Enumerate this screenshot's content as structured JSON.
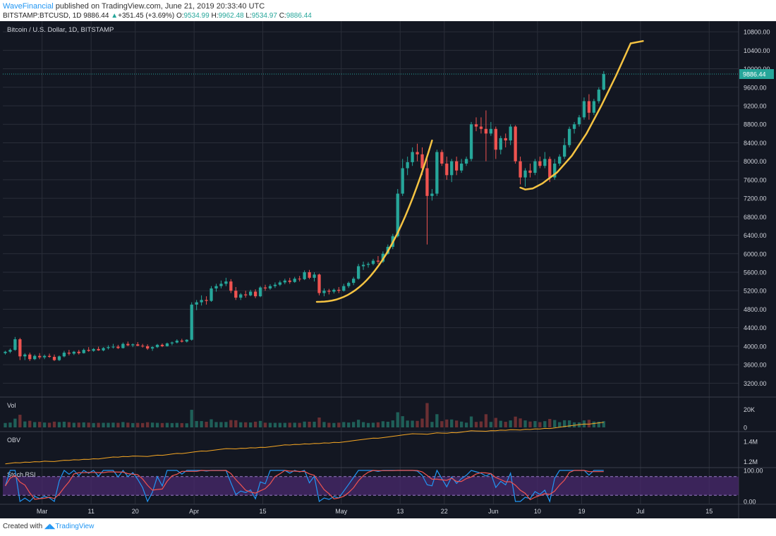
{
  "header": {
    "author": "WaveFinancial",
    "published_text": " published on TradingView.com, June 21, 2019 20:33:40 UTC",
    "symbol_line": "BITSTAMP:BTCUSD, 1D",
    "last": "9886.44",
    "change_arrow": "▲",
    "change": "+351.45 (+3.69%)",
    "o_label": "O:",
    "o": "9534.99",
    "h_label": "H:",
    "h": "9962.48",
    "l_label": "L:",
    "l": "9534.97",
    "c_label": "C:",
    "c": "9886.44"
  },
  "footer": {
    "created_with": "Created with",
    "brand": "TradingView"
  },
  "colors": {
    "background": "#131722",
    "up": "#26a69a",
    "down": "#ef5350",
    "trend": "#f5c342",
    "obv_line": "#f5a623",
    "stoch_k": "#2196f3",
    "stoch_d": "#ef5350",
    "stoch_band": "#4a2a6e"
  },
  "chart_data": {
    "type": "candlestick",
    "title": "Bitcoin / U.S. Dollar, 1D, BITSTAMP",
    "price_ticks": [
      3200,
      3600,
      4000,
      4400,
      4800,
      5200,
      5600,
      6000,
      6400,
      6800,
      7200,
      7600,
      8000,
      8400,
      8800,
      9200,
      9600,
      10000,
      10400,
      10800
    ],
    "ylim": [
      2900,
      11000
    ],
    "last_price_label": "9886.44",
    "x_ticks": [
      {
        "label": "Mar",
        "day": 8
      },
      {
        "label": "11",
        "day": 18
      },
      {
        "label": "20",
        "day": 27
      },
      {
        "label": "Apr",
        "day": 39
      },
      {
        "label": "15",
        "day": 53
      },
      {
        "label": "May",
        "day": 69
      },
      {
        "label": "13",
        "day": 81
      },
      {
        "label": "22",
        "day": 90
      },
      {
        "label": "Jun",
        "day": 100
      },
      {
        "label": "10",
        "day": 109
      },
      {
        "label": "19",
        "day": 118
      },
      {
        "label": "Jul",
        "day": 130
      },
      {
        "label": "15",
        "day": 144
      }
    ],
    "xlim_days": [
      0,
      150
    ],
    "candles": [
      [
        3850,
        3900,
        3820,
        3880
      ],
      [
        3880,
        3950,
        3850,
        3920
      ],
      [
        3920,
        4200,
        3900,
        4150
      ],
      [
        4150,
        4180,
        3700,
        3780
      ],
      [
        3780,
        3850,
        3700,
        3820
      ],
      [
        3820,
        3860,
        3680,
        3720
      ],
      [
        3720,
        3820,
        3700,
        3790
      ],
      [
        3790,
        3850,
        3720,
        3760
      ],
      [
        3760,
        3820,
        3720,
        3790
      ],
      [
        3790,
        3840,
        3750,
        3770
      ],
      [
        3770,
        3820,
        3680,
        3700
      ],
      [
        3700,
        3800,
        3680,
        3780
      ],
      [
        3780,
        3900,
        3760,
        3860
      ],
      [
        3860,
        3920,
        3800,
        3840
      ],
      [
        3840,
        3900,
        3810,
        3880
      ],
      [
        3880,
        3920,
        3820,
        3850
      ],
      [
        3850,
        3950,
        3840,
        3920
      ],
      [
        3920,
        3980,
        3880,
        3900
      ],
      [
        3900,
        3960,
        3880,
        3940
      ],
      [
        3940,
        3990,
        3900,
        3910
      ],
      [
        3910,
        3980,
        3890,
        3960
      ],
      [
        3960,
        4020,
        3930,
        3980
      ],
      [
        3980,
        4050,
        3950,
        3990
      ],
      [
        3990,
        4030,
        3940,
        3960
      ],
      [
        3960,
        4080,
        3950,
        4050
      ],
      [
        4050,
        4100,
        4000,
        4020
      ],
      [
        4020,
        4060,
        3980,
        4040
      ],
      [
        4040,
        4090,
        4000,
        4010
      ],
      [
        4010,
        4050,
        3970,
        4000
      ],
      [
        4000,
        4040,
        3920,
        3950
      ],
      [
        3950,
        4000,
        3900,
        3980
      ],
      [
        3980,
        4050,
        3960,
        4030
      ],
      [
        4030,
        4060,
        3980,
        4000
      ],
      [
        4000,
        4080,
        3990,
        4060
      ],
      [
        4060,
        4100,
        4020,
        4080
      ],
      [
        4080,
        4150,
        4060,
        4120
      ],
      [
        4120,
        4160,
        4080,
        4100
      ],
      [
        4100,
        4150,
        4080,
        4140
      ],
      [
        4140,
        4950,
        4120,
        4900
      ],
      [
        4900,
        5000,
        4780,
        4950
      ],
      [
        4950,
        5100,
        4880,
        5000
      ],
      [
        5000,
        5080,
        4900,
        4980
      ],
      [
        4980,
        5300,
        4960,
        5250
      ],
      [
        5250,
        5350,
        5180,
        5300
      ],
      [
        5300,
        5420,
        5250,
        5350
      ],
      [
        5350,
        5480,
        5300,
        5400
      ],
      [
        5400,
        5450,
        5150,
        5200
      ],
      [
        5200,
        5280,
        5000,
        5050
      ],
      [
        5050,
        5150,
        5000,
        5120
      ],
      [
        5120,
        5200,
        5050,
        5100
      ],
      [
        5100,
        5220,
        5080,
        5180
      ],
      [
        5180,
        5230,
        5040,
        5080
      ],
      [
        5080,
        5300,
        5060,
        5270
      ],
      [
        5270,
        5330,
        5200,
        5250
      ],
      [
        5250,
        5340,
        5220,
        5300
      ],
      [
        5300,
        5380,
        5260,
        5330
      ],
      [
        5330,
        5420,
        5300,
        5380
      ],
      [
        5380,
        5460,
        5340,
        5420
      ],
      [
        5420,
        5480,
        5350,
        5390
      ],
      [
        5390,
        5500,
        5370,
        5460
      ],
      [
        5460,
        5520,
        5400,
        5450
      ],
      [
        5450,
        5640,
        5430,
        5600
      ],
      [
        5600,
        5650,
        5450,
        5480
      ],
      [
        5480,
        5600,
        5400,
        5550
      ],
      [
        5550,
        5570,
        5100,
        5150
      ],
      [
        5150,
        5250,
        5080,
        5200
      ],
      [
        5200,
        5240,
        5120,
        5180
      ],
      [
        5180,
        5250,
        5140,
        5220
      ],
      [
        5220,
        5280,
        5150,
        5200
      ],
      [
        5200,
        5350,
        5180,
        5300
      ],
      [
        5300,
        5400,
        5260,
        5370
      ],
      [
        5370,
        5500,
        5320,
        5460
      ],
      [
        5460,
        5780,
        5440,
        5730
      ],
      [
        5730,
        5830,
        5650,
        5760
      ],
      [
        5760,
        5820,
        5700,
        5780
      ],
      [
        5780,
        5890,
        5750,
        5850
      ],
      [
        5850,
        5950,
        5780,
        5830
      ],
      [
        5830,
        6050,
        5800,
        6000
      ],
      [
        6000,
        6200,
        5980,
        6150
      ],
      [
        6150,
        6430,
        6100,
        6380
      ],
      [
        6380,
        7400,
        6350,
        7300
      ],
      [
        7300,
        8050,
        7250,
        7850
      ],
      [
        7850,
        8100,
        7700,
        7980
      ],
      [
        7980,
        8300,
        7900,
        8200
      ],
      [
        8200,
        8380,
        8000,
        8150
      ],
      [
        8150,
        8300,
        7700,
        7850
      ],
      [
        7850,
        8100,
        6200,
        7250
      ],
      [
        7250,
        7400,
        7150,
        7300
      ],
      [
        7300,
        8250,
        7250,
        8200
      ],
      [
        8200,
        8250,
        7900,
        7950
      ],
      [
        7950,
        8100,
        7600,
        7700
      ],
      [
        7700,
        8050,
        7550,
        8000
      ],
      [
        8000,
        8100,
        7700,
        7800
      ],
      [
        7800,
        8050,
        7750,
        7950
      ],
      [
        7950,
        8100,
        7900,
        8050
      ],
      [
        8050,
        8850,
        8000,
        8800
      ],
      [
        8800,
        8950,
        8650,
        8750
      ],
      [
        8750,
        8950,
        8600,
        8700
      ],
      [
        8700,
        9100,
        8000,
        8600
      ],
      [
        8600,
        8850,
        8550,
        8700
      ],
      [
        8700,
        8750,
        8050,
        8250
      ],
      [
        8250,
        8550,
        8150,
        8500
      ],
      [
        8500,
        8600,
        8300,
        8450
      ],
      [
        8450,
        8800,
        8350,
        8750
      ],
      [
        8750,
        8780,
        7950,
        8000
      ],
      [
        8000,
        8100,
        7500,
        7650
      ],
      [
        7650,
        7850,
        7450,
        7800
      ],
      [
        7800,
        7950,
        7650,
        7750
      ],
      [
        7750,
        8050,
        7700,
        8000
      ],
      [
        8000,
        8100,
        7850,
        7900
      ],
      [
        7900,
        8200,
        7850,
        8050
      ],
      [
        8050,
        8100,
        7550,
        7650
      ],
      [
        7650,
        8050,
        7600,
        7950
      ],
      [
        7950,
        8150,
        7900,
        8100
      ],
      [
        8100,
        8500,
        8050,
        8350
      ],
      [
        8350,
        8750,
        8300,
        8700
      ],
      [
        8700,
        8850,
        8600,
        8800
      ],
      [
        8800,
        9000,
        8750,
        8950
      ],
      [
        8950,
        9380,
        8900,
        9300
      ],
      [
        9300,
        9450,
        8900,
        9050
      ],
      [
        9050,
        9350,
        9000,
        9300
      ],
      [
        9300,
        9600,
        9250,
        9550
      ],
      [
        9550,
        9950,
        9530,
        9886
      ]
    ],
    "volume_ticks": [
      {
        "label": "0",
        "value": 0
      },
      {
        "label": "20K",
        "value": 20000
      }
    ],
    "volume_max": 32000,
    "obv_ticks": [
      {
        "label": "1.2M",
        "value": 1.2
      },
      {
        "label": "1.4M",
        "value": 1.4
      }
    ],
    "obv_range": [
      1.14,
      1.5
    ],
    "obv_start": 1.17,
    "obv_end": 1.47,
    "stoch_ticks": [
      {
        "label": "100.00",
        "value": 100
      },
      {
        "label": "0.00",
        "value": 0
      }
    ],
    "stoch_band": [
      20,
      80
    ]
  },
  "panes": {
    "vol_label": "Vol",
    "obv_label": "OBV",
    "stoch_label": "Stoch RSI"
  }
}
